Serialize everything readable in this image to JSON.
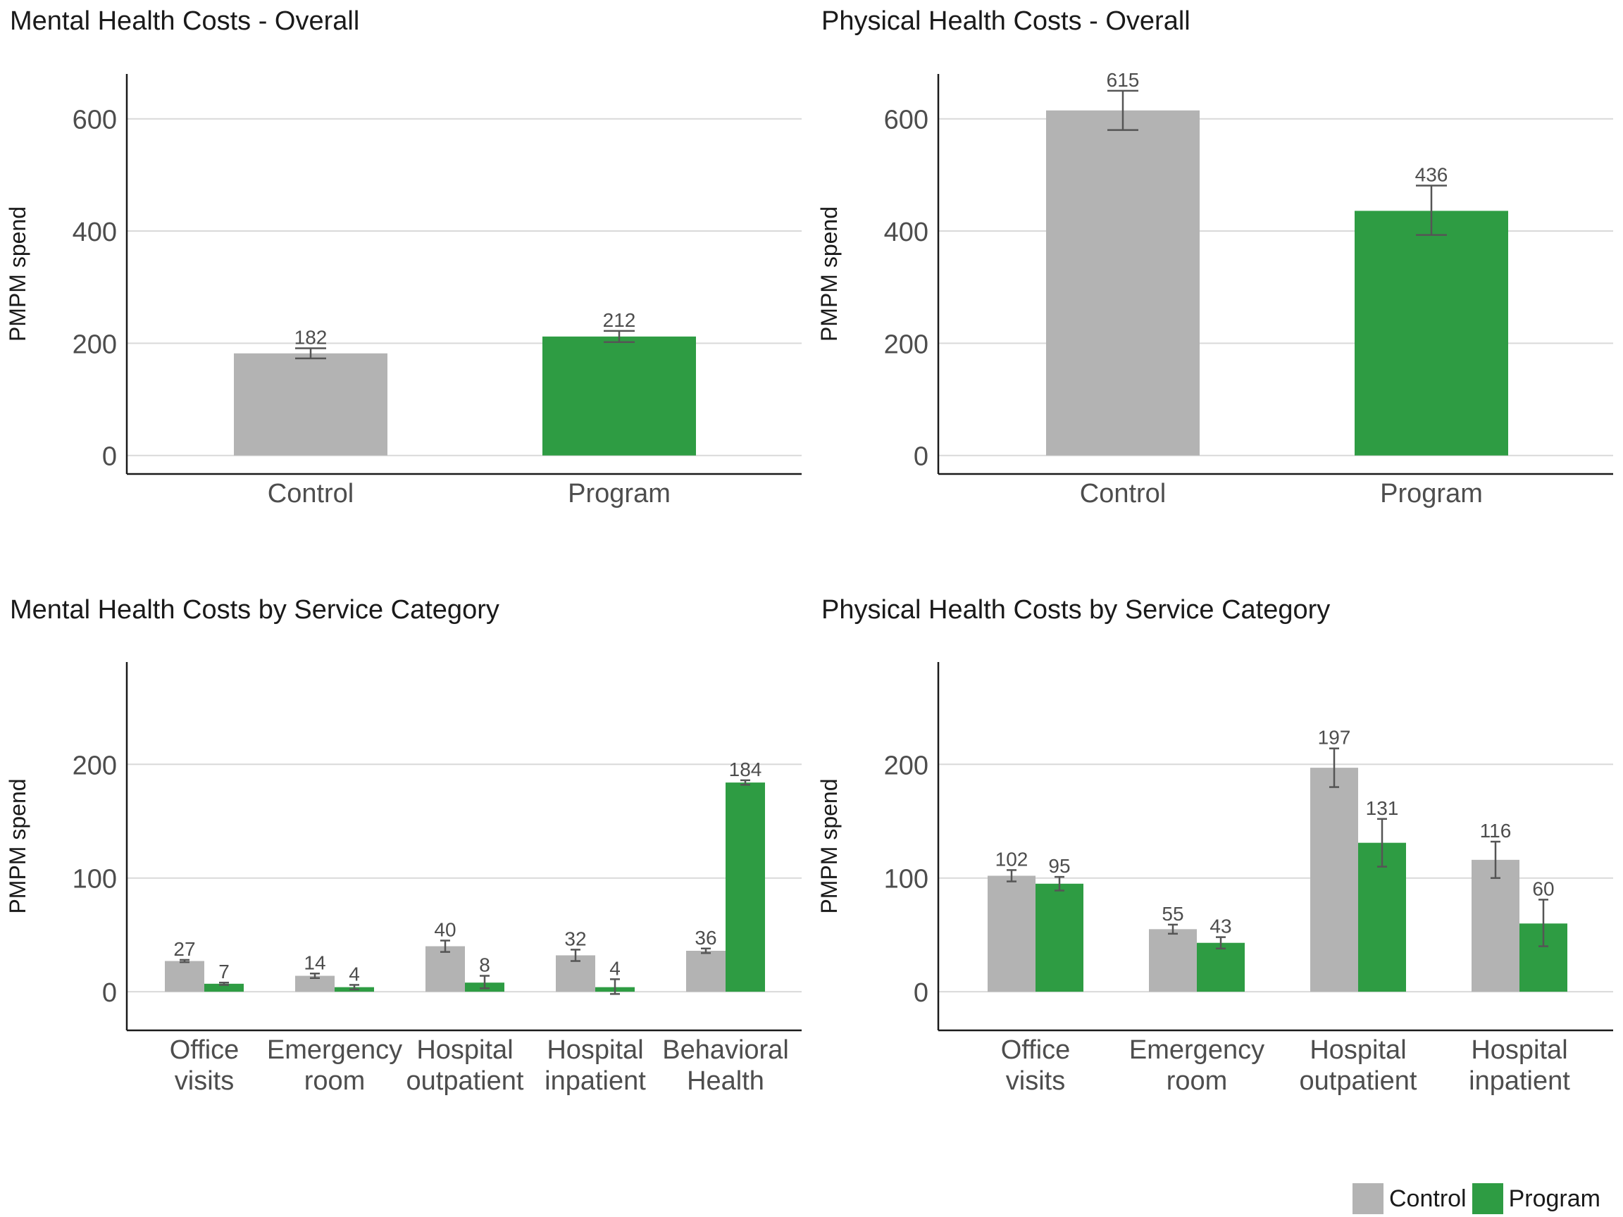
{
  "colors": {
    "control": "#b3b3b3",
    "program": "#2e9c43",
    "grid": "#d9d9d9",
    "axis": "#1a1a1a",
    "text": "#4d4d4d",
    "errorbar": "#555555"
  },
  "legend": {
    "control": "Control",
    "program": "Program"
  },
  "chart_data": [
    {
      "type": "bar",
      "title": "Mental Health Costs - Overall",
      "ylabel": "PMPM spend",
      "xlabel": "",
      "ylim": [
        -33,
        680
      ],
      "yticks": [
        0,
        200,
        400,
        600
      ],
      "grid": true,
      "categories": [
        [
          "Control"
        ],
        [
          "Program"
        ]
      ],
      "series": [
        {
          "name": "Control",
          "values": [
            182,
            null
          ],
          "error": [
            [
              173,
              191
            ],
            null
          ],
          "labels": [
            "182",
            null
          ]
        },
        {
          "name": "Program",
          "values": [
            null,
            212
          ],
          "error": [
            null,
            [
              202,
              222
            ]
          ],
          "labels": [
            null,
            "212"
          ]
        }
      ]
    },
    {
      "type": "bar",
      "title": "Physical Health Costs - Overall",
      "ylabel": "PMPM spend",
      "xlabel": "",
      "ylim": [
        -33,
        680
      ],
      "yticks": [
        0,
        200,
        400,
        600
      ],
      "grid": true,
      "categories": [
        [
          "Control"
        ],
        [
          "Program"
        ]
      ],
      "series": [
        {
          "name": "Control",
          "values": [
            615,
            null
          ],
          "error": [
            [
              580,
              650
            ],
            null
          ],
          "labels": [
            "615",
            null
          ]
        },
        {
          "name": "Program",
          "values": [
            null,
            436
          ],
          "error": [
            null,
            [
              393,
              481
            ]
          ],
          "labels": [
            null,
            "436"
          ]
        }
      ]
    },
    {
      "type": "bar",
      "title": "Mental Health Costs by Service Category",
      "ylabel": "PMPM spend",
      "xlabel": "",
      "ylim": [
        -34,
        290
      ],
      "yticks": [
        0,
        100,
        200
      ],
      "grid": true,
      "categories": [
        [
          "Office",
          "visits"
        ],
        [
          "Emergency",
          "room"
        ],
        [
          "Hospital",
          "outpatient"
        ],
        [
          "Hospital",
          "inpatient"
        ],
        [
          "Behavioral",
          "Health"
        ]
      ],
      "series": [
        {
          "name": "Control",
          "values": [
            27,
            14,
            40,
            32,
            36
          ],
          "error": [
            [
              26,
              28
            ],
            [
              12,
              16
            ],
            [
              35,
              45
            ],
            [
              27,
              37
            ],
            [
              34,
              38
            ]
          ],
          "labels": [
            "27",
            "14",
            "40",
            "32",
            "36"
          ]
        },
        {
          "name": "Program",
          "values": [
            7,
            4,
            8,
            4,
            184
          ],
          "error": [
            [
              6,
              8
            ],
            [
              2,
              6
            ],
            [
              3,
              14
            ],
            [
              -2,
              11
            ],
            [
              182,
              186
            ]
          ],
          "labels": [
            "7",
            "4",
            "8",
            "4",
            "184"
          ]
        }
      ]
    },
    {
      "type": "bar",
      "title": "Physical Health Costs by Service Category",
      "ylabel": "PMPM spend",
      "xlabel": "",
      "ylim": [
        -34,
        290
      ],
      "yticks": [
        0,
        100,
        200
      ],
      "grid": true,
      "categories": [
        [
          "Office",
          "visits"
        ],
        [
          "Emergency",
          "room"
        ],
        [
          "Hospital",
          "outpatient"
        ],
        [
          "Hospital",
          "inpatient"
        ]
      ],
      "series": [
        {
          "name": "Control",
          "values": [
            102,
            55,
            197,
            116
          ],
          "error": [
            [
              97,
              107
            ],
            [
              51,
              59
            ],
            [
              180,
              214
            ],
            [
              100,
              132
            ]
          ],
          "labels": [
            "102",
            "55",
            "197",
            "116"
          ]
        },
        {
          "name": "Program",
          "values": [
            95,
            43,
            131,
            60
          ],
          "error": [
            [
              89,
              101
            ],
            [
              38,
              48
            ],
            [
              110,
              152
            ],
            [
              40,
              81
            ]
          ],
          "labels": [
            "95",
            "43",
            "131",
            "60"
          ]
        }
      ]
    }
  ]
}
